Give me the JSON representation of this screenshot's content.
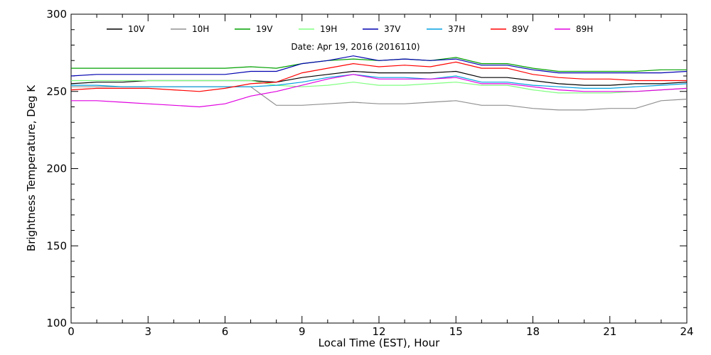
{
  "chart_data": {
    "type": "line",
    "title": "",
    "annotation": "Date: Apr 19, 2016 (2016110)",
    "xlabel": "Local Time (EST), Hour",
    "ylabel": "Brightness Temperature, Deg  K",
    "xlim": [
      0,
      24
    ],
    "ylim": [
      100,
      300
    ],
    "xticks": [
      0,
      3,
      6,
      9,
      12,
      15,
      18,
      21,
      24
    ],
    "yticks": [
      100,
      150,
      200,
      250,
      300
    ],
    "grid": false,
    "legend_position": "top",
    "x": [
      0,
      1,
      2,
      3,
      4,
      5,
      6,
      7,
      8,
      9,
      10,
      11,
      12,
      13,
      14,
      15,
      16,
      17,
      18,
      19,
      20,
      21,
      22,
      23,
      24
    ],
    "series": [
      {
        "name": "10V",
        "color": "#000000",
        "values": [
          255,
          256,
          256,
          257,
          257,
          257,
          257,
          257,
          256,
          259,
          261,
          263,
          262,
          262,
          262,
          263,
          259,
          259,
          257,
          255,
          254,
          254,
          255,
          255,
          256
        ]
      },
      {
        "name": "10H",
        "color": "#909090",
        "values": [
          253,
          253,
          253,
          253,
          253,
          253,
          253,
          253,
          241,
          241,
          242,
          243,
          242,
          242,
          243,
          244,
          241,
          241,
          239,
          238,
          238,
          239,
          239,
          244,
          245
        ]
      },
      {
        "name": "19V",
        "color": "#00a000",
        "values": [
          265,
          265,
          265,
          265,
          265,
          265,
          265,
          266,
          265,
          268,
          270,
          271,
          270,
          271,
          270,
          272,
          268,
          268,
          265,
          263,
          263,
          263,
          263,
          264,
          264
        ]
      },
      {
        "name": "19H",
        "color": "#80ff80",
        "values": [
          257,
          257,
          257,
          257,
          257,
          257,
          257,
          257,
          254,
          253,
          254,
          256,
          254,
          254,
          255,
          256,
          254,
          254,
          251,
          249,
          249,
          249,
          250,
          251,
          252
        ]
      },
      {
        "name": "37V",
        "color": "#0000b0",
        "values": [
          260,
          261,
          261,
          261,
          261,
          261,
          261,
          263,
          263,
          268,
          270,
          273,
          270,
          271,
          270,
          271,
          267,
          267,
          264,
          262,
          262,
          262,
          262,
          262,
          263
        ]
      },
      {
        "name": "37H",
        "color": "#00a0e0",
        "values": [
          254,
          254,
          253,
          253,
          253,
          253,
          253,
          253,
          254,
          256,
          259,
          261,
          259,
          259,
          258,
          260,
          256,
          256,
          254,
          253,
          252,
          252,
          253,
          254,
          255
        ]
      },
      {
        "name": "89V",
        "color": "#ff0000",
        "values": [
          251,
          252,
          252,
          252,
          251,
          250,
          252,
          255,
          256,
          262,
          265,
          268,
          266,
          267,
          266,
          269,
          265,
          265,
          261,
          259,
          258,
          258,
          257,
          257,
          257
        ]
      },
      {
        "name": "89H",
        "color": "#e000e0",
        "values": [
          244,
          244,
          243,
          242,
          241,
          240,
          242,
          247,
          250,
          254,
          258,
          261,
          258,
          258,
          258,
          259,
          255,
          255,
          253,
          251,
          250,
          250,
          250,
          251,
          252
        ]
      }
    ]
  }
}
